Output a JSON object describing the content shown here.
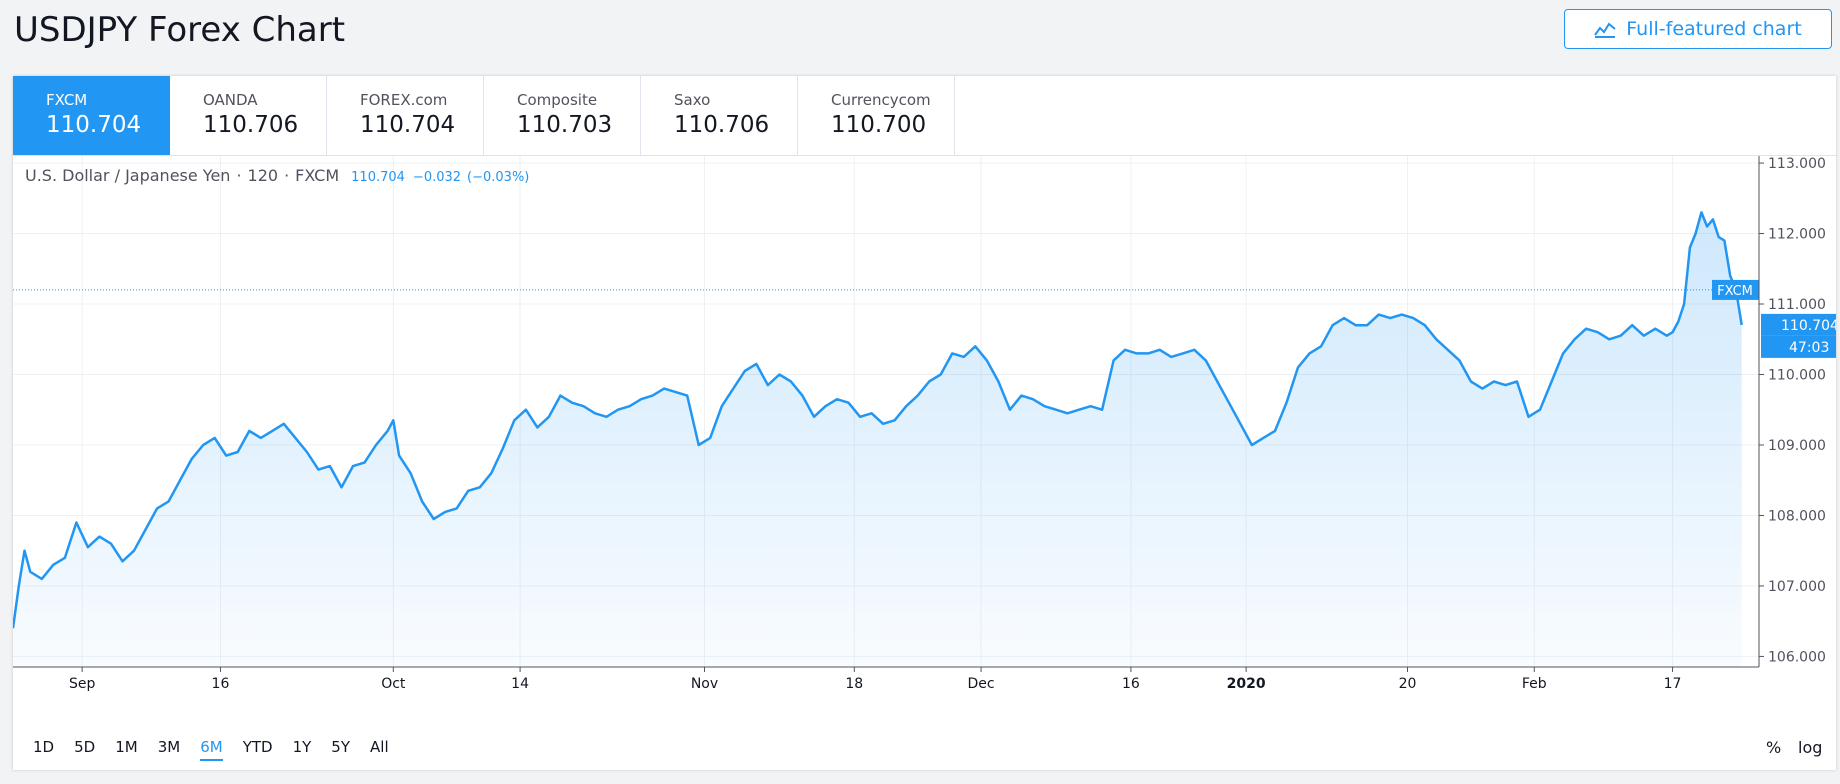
{
  "header": {
    "title": "USDJPY Forex Chart",
    "full_chart_label": "Full-featured chart"
  },
  "tabs": [
    {
      "name": "FXCM",
      "price": "110.704",
      "active": true
    },
    {
      "name": "OANDA",
      "price": "110.706",
      "active": false
    },
    {
      "name": "FOREX.com",
      "price": "110.704",
      "active": false
    },
    {
      "name": "Composite",
      "price": "110.703",
      "active": false
    },
    {
      "name": "Saxo",
      "price": "110.706",
      "active": false
    },
    {
      "name": "Currencycom",
      "price": "110.700",
      "active": false
    }
  ],
  "legend": {
    "symbol": "U.S. Dollar / Japanese Yen",
    "interval": "120",
    "source": "FXCM",
    "last": "110.704",
    "change": "−0.032",
    "change_pct": "(−0.03%)"
  },
  "ranges": [
    {
      "label": "1D",
      "active": false
    },
    {
      "label": "5D",
      "active": false
    },
    {
      "label": "1M",
      "active": false
    },
    {
      "label": "3M",
      "active": false
    },
    {
      "label": "6M",
      "active": true
    },
    {
      "label": "YTD",
      "active": false
    },
    {
      "label": "1Y",
      "active": false
    },
    {
      "label": "5Y",
      "active": false
    },
    {
      "label": "All",
      "active": false
    }
  ],
  "scale_buttons": {
    "percent": "%",
    "log": "log"
  },
  "chart_data": {
    "type": "area",
    "y_ticks": [
      "113.000",
      "112.000",
      "111.000",
      "110.000",
      "109.000",
      "108.000",
      "107.000",
      "106.000"
    ],
    "ylim": [
      105.85,
      113.1
    ],
    "x_ticks": [
      {
        "label": "Sep",
        "t": 3.5,
        "bold": false
      },
      {
        "label": "16",
        "t": 15.5,
        "bold": false
      },
      {
        "label": "Oct",
        "t": 30.5,
        "bold": false
      },
      {
        "label": "14",
        "t": 41.5,
        "bold": false
      },
      {
        "label": "Nov",
        "t": 57.5,
        "bold": false
      },
      {
        "label": "18",
        "t": 70.5,
        "bold": false
      },
      {
        "label": "Dec",
        "t": 81.5,
        "bold": false
      },
      {
        "label": "16",
        "t": 94.5,
        "bold": false
      },
      {
        "label": "2020",
        "t": 104.5,
        "bold": true
      },
      {
        "label": "20",
        "t": 118.5,
        "bold": false
      },
      {
        "label": "Feb",
        "t": 129.5,
        "bold": false
      },
      {
        "label": "17",
        "t": 141.5,
        "bold": false
      }
    ],
    "xlim": [
      -2.5,
      149
    ],
    "series": [
      {
        "points": [
          [
            -2.5,
            106.4
          ],
          [
            -2,
            107.0
          ],
          [
            -1.5,
            107.5
          ],
          [
            -1,
            107.2
          ],
          [
            0,
            107.1
          ],
          [
            1,
            107.3
          ],
          [
            2,
            107.4
          ],
          [
            3,
            107.9
          ],
          [
            4,
            107.55
          ],
          [
            5,
            107.7
          ],
          [
            6,
            107.6
          ],
          [
            7,
            107.35
          ],
          [
            8,
            107.5
          ],
          [
            9,
            107.8
          ],
          [
            10,
            108.1
          ],
          [
            11,
            108.2
          ],
          [
            12,
            108.5
          ],
          [
            13,
            108.8
          ],
          [
            14,
            109.0
          ],
          [
            15,
            109.1
          ],
          [
            16,
            108.85
          ],
          [
            17,
            108.9
          ],
          [
            18,
            109.2
          ],
          [
            19,
            109.1
          ],
          [
            20,
            109.2
          ],
          [
            21,
            109.3
          ],
          [
            22,
            109.1
          ],
          [
            23,
            108.9
          ],
          [
            24,
            108.65
          ],
          [
            25,
            108.7
          ],
          [
            26,
            108.4
          ],
          [
            27,
            108.7
          ],
          [
            28,
            108.75
          ],
          [
            29,
            109.0
          ],
          [
            30,
            109.2
          ],
          [
            30.5,
            109.35
          ],
          [
            31,
            108.85
          ],
          [
            32,
            108.6
          ],
          [
            33,
            108.2
          ],
          [
            34,
            107.95
          ],
          [
            35,
            108.05
          ],
          [
            36,
            108.1
          ],
          [
            37,
            108.35
          ],
          [
            38,
            108.4
          ],
          [
            39,
            108.6
          ],
          [
            40,
            108.95
          ],
          [
            41,
            109.35
          ],
          [
            42,
            109.5
          ],
          [
            43,
            109.25
          ],
          [
            44,
            109.4
          ],
          [
            45,
            109.7
          ],
          [
            46,
            109.6
          ],
          [
            47,
            109.55
          ],
          [
            48,
            109.45
          ],
          [
            49,
            109.4
          ],
          [
            50,
            109.5
          ],
          [
            51,
            109.55
          ],
          [
            52,
            109.65
          ],
          [
            53,
            109.7
          ],
          [
            54,
            109.8
          ],
          [
            55,
            109.75
          ],
          [
            56,
            109.7
          ],
          [
            57,
            109.0
          ],
          [
            58,
            109.1
          ],
          [
            59,
            109.55
          ],
          [
            60,
            109.8
          ],
          [
            61,
            110.05
          ],
          [
            62,
            110.15
          ],
          [
            63,
            109.85
          ],
          [
            64,
            110.0
          ],
          [
            65,
            109.9
          ],
          [
            66,
            109.7
          ],
          [
            67,
            109.4
          ],
          [
            68,
            109.55
          ],
          [
            69,
            109.65
          ],
          [
            70,
            109.6
          ],
          [
            71,
            109.4
          ],
          [
            72,
            109.45
          ],
          [
            73,
            109.3
          ],
          [
            74,
            109.35
          ],
          [
            75,
            109.55
          ],
          [
            76,
            109.7
          ],
          [
            77,
            109.9
          ],
          [
            78,
            110.0
          ],
          [
            79,
            110.3
          ],
          [
            80,
            110.25
          ],
          [
            81,
            110.4
          ],
          [
            82,
            110.2
          ],
          [
            83,
            109.9
          ],
          [
            84,
            109.5
          ],
          [
            85,
            109.7
          ],
          [
            86,
            109.65
          ],
          [
            87,
            109.55
          ],
          [
            88,
            109.5
          ],
          [
            89,
            109.45
          ],
          [
            90,
            109.5
          ],
          [
            91,
            109.55
          ],
          [
            92,
            109.5
          ],
          [
            93,
            110.2
          ],
          [
            94,
            110.35
          ],
          [
            95,
            110.3
          ],
          [
            96,
            110.3
          ],
          [
            97,
            110.35
          ],
          [
            98,
            110.25
          ],
          [
            99,
            110.3
          ],
          [
            100,
            110.35
          ],
          [
            101,
            110.2
          ],
          [
            102,
            109.9
          ],
          [
            103,
            109.6
          ],
          [
            104,
            109.3
          ],
          [
            105,
            109.0
          ],
          [
            106,
            109.1
          ],
          [
            107,
            109.2
          ],
          [
            108,
            109.6
          ],
          [
            109,
            110.1
          ],
          [
            110,
            110.3
          ],
          [
            111,
            110.4
          ],
          [
            112,
            110.7
          ],
          [
            113,
            110.8
          ],
          [
            114,
            110.7
          ],
          [
            115,
            110.7
          ],
          [
            116,
            110.85
          ],
          [
            117,
            110.8
          ],
          [
            118,
            110.85
          ],
          [
            119,
            110.8
          ],
          [
            120,
            110.7
          ],
          [
            121,
            110.5
          ],
          [
            122,
            110.35
          ],
          [
            123,
            110.2
          ],
          [
            124,
            109.9
          ],
          [
            125,
            109.8
          ],
          [
            126,
            109.9
          ],
          [
            127,
            109.85
          ],
          [
            128,
            109.9
          ],
          [
            129,
            109.4
          ],
          [
            130,
            109.5
          ],
          [
            131,
            109.9
          ],
          [
            132,
            110.3
          ],
          [
            133,
            110.5
          ],
          [
            134,
            110.65
          ],
          [
            135,
            110.6
          ],
          [
            136,
            110.5
          ],
          [
            137,
            110.55
          ],
          [
            138,
            110.7
          ],
          [
            139,
            110.55
          ],
          [
            140,
            110.65
          ],
          [
            141,
            110.55
          ],
          [
            141.5,
            110.6
          ],
          [
            142,
            110.75
          ],
          [
            142.5,
            111.0
          ],
          [
            143,
            111.8
          ],
          [
            143.5,
            112.0
          ],
          [
            144,
            112.3
          ],
          [
            144.5,
            112.1
          ],
          [
            145,
            112.2
          ],
          [
            145.5,
            111.95
          ],
          [
            146,
            111.9
          ],
          [
            146.5,
            111.4
          ],
          [
            147,
            111.2
          ],
          [
            147.5,
            110.704
          ]
        ]
      }
    ],
    "reference_line": {
      "value": 111.2,
      "label": "FXCM"
    },
    "last_price_label": "110.704",
    "countdown_label": "47:03",
    "line_color": "#2196f3",
    "fill_color": "#2196f3"
  },
  "colors": {
    "accent": "#2196f3",
    "grid": "#eef0f3",
    "axis": "#50535e"
  }
}
